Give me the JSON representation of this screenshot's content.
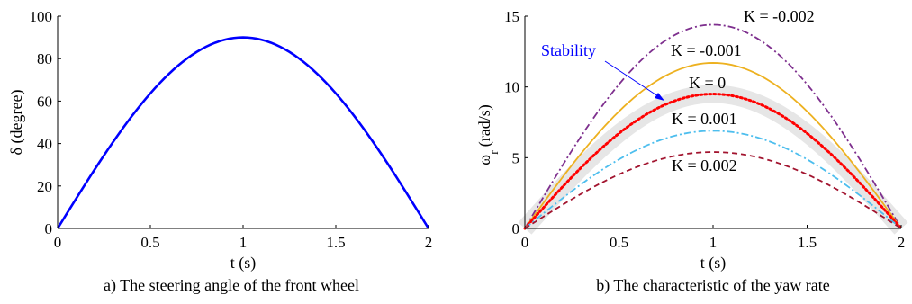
{
  "chart_data": [
    {
      "type": "line",
      "caption": "a) The steering angle of the front wheel",
      "xlabel": "t (s)",
      "ylabel": "δ (degree)",
      "xlim": [
        0,
        2
      ],
      "ylim": [
        0,
        100
      ],
      "xticks": [
        "0",
        "0.5",
        "1",
        "1.5",
        "2"
      ],
      "yticks": [
        "0",
        "20",
        "40",
        "60",
        "80",
        "100"
      ],
      "grid": false,
      "series": [
        {
          "color": "#0000ff",
          "style": "solid",
          "x": [
            0,
            0.25,
            0.5,
            0.75,
            1.0,
            1.25,
            1.5,
            1.75,
            2.0
          ],
          "y": [
            0,
            34.4,
            63.6,
            83.1,
            90,
            83.1,
            63.6,
            34.4,
            0
          ]
        }
      ]
    },
    {
      "type": "line",
      "caption": "b) The characteristic of the yaw rate",
      "xlabel": "t (s)",
      "ylabel": "ω",
      "ylabel_sub": "r",
      "ylabel_units": "(rad/s)",
      "xlim": [
        0,
        2
      ],
      "ylim": [
        0,
        15
      ],
      "xticks": [
        "0",
        "0.5",
        "1",
        "1.5",
        "2"
      ],
      "yticks": [
        "0",
        "5",
        "10",
        "15"
      ],
      "grid": false,
      "annotation": {
        "text": "Stability",
        "color": "#0000ff"
      },
      "band": {
        "color": "#e6e6e6",
        "peak": 9.5
      },
      "series": [
        {
          "name": "K = -0.002",
          "color": "#7e2f8e",
          "style": "dashdot",
          "peak": 14.4,
          "x": [
            0,
            0.25,
            0.5,
            0.75,
            1.0,
            1.25,
            1.5,
            1.75,
            2.0
          ],
          "y": [
            0,
            5.5,
            10.2,
            13.3,
            14.4,
            13.3,
            10.2,
            5.5,
            0
          ]
        },
        {
          "name": "K = -0.001",
          "color": "#edb120",
          "style": "solid",
          "peak": 11.7,
          "x": [
            0,
            0.25,
            0.5,
            0.75,
            1.0,
            1.25,
            1.5,
            1.75,
            2.0
          ],
          "y": [
            0,
            4.5,
            8.3,
            10.8,
            11.7,
            10.8,
            8.3,
            4.5,
            0
          ]
        },
        {
          "name": "K = 0",
          "color": "#ff0000",
          "style": "dotted",
          "peak": 9.5,
          "x": [
            0,
            0.25,
            0.5,
            0.75,
            1.0,
            1.25,
            1.5,
            1.75,
            2.0
          ],
          "y": [
            0,
            3.6,
            6.7,
            8.8,
            9.5,
            8.8,
            6.7,
            3.6,
            0
          ]
        },
        {
          "name": "K = 0.001",
          "color": "#4dbeee",
          "style": "dashdot",
          "peak": 6.9,
          "x": [
            0,
            0.25,
            0.5,
            0.75,
            1.0,
            1.25,
            1.5,
            1.75,
            2.0
          ],
          "y": [
            0,
            2.6,
            4.9,
            6.4,
            6.9,
            6.4,
            4.9,
            2.6,
            0
          ]
        },
        {
          "name": "K = 0.002",
          "color": "#a2142f",
          "style": "dashed",
          "peak": 5.4,
          "x": [
            0,
            0.25,
            0.5,
            0.75,
            1.0,
            1.25,
            1.5,
            1.75,
            2.0
          ],
          "y": [
            0,
            2.1,
            3.8,
            5.0,
            5.4,
            5.0,
            3.8,
            2.1,
            0
          ]
        }
      ]
    }
  ]
}
